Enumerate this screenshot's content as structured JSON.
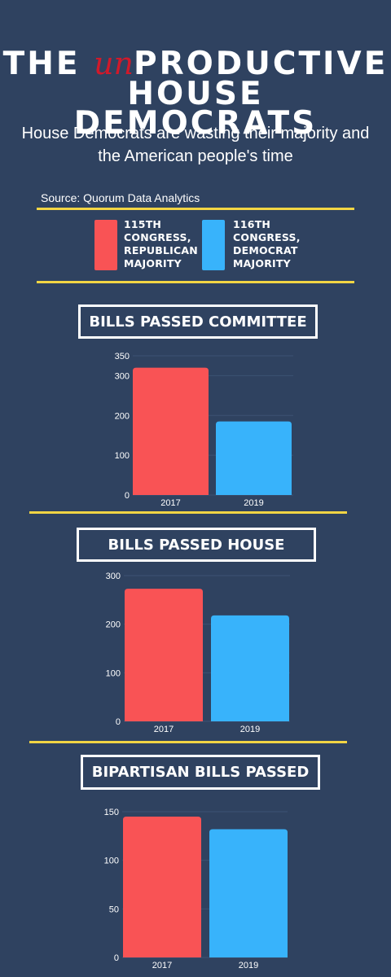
{
  "header": {
    "title_pre": "THE ",
    "title_un": "un",
    "title_post": "PRODUCTIVE",
    "title_line2": "HOUSE DEMOCRATS",
    "subtitle": "House Democrats are wasting their majority and the American people's time",
    "source": "Source: Quorum Data Analytics"
  },
  "legend": {
    "items": [
      {
        "lines": [
          "115th",
          "Congress,",
          "Republican",
          "Majority"
        ],
        "color": "#f95355"
      },
      {
        "lines": [
          "116th",
          "Congress,",
          "Democrat",
          "Majority"
        ],
        "color": "#38b3fb"
      }
    ]
  },
  "colors": {
    "background": "#2f4260",
    "rule": "#f2d544",
    "republican": "#f95355",
    "democrat": "#38b3fb",
    "title_accent": "#d0192a"
  },
  "chart_data": [
    {
      "type": "bar",
      "title": "BILLS PASSED COMMITTEE",
      "categories": [
        "2017",
        "2019"
      ],
      "values": [
        320,
        185
      ],
      "yticks": [
        0,
        100,
        200,
        300,
        350
      ],
      "ylim": [
        0,
        350
      ],
      "colors": [
        "#f95355",
        "#38b3fb"
      ],
      "grid": true
    },
    {
      "type": "bar",
      "title": "BILLS PASSED HOUSE",
      "categories": [
        "2017",
        "2019"
      ],
      "values": [
        273,
        218
      ],
      "yticks": [
        0,
        100,
        200,
        300
      ],
      "ylim": [
        0,
        300
      ],
      "colors": [
        "#f95355",
        "#38b3fb"
      ],
      "grid": true
    },
    {
      "type": "bar",
      "title": "BIPARTISAN BILLS PASSED",
      "categories": [
        "2017",
        "2019"
      ],
      "values": [
        145,
        132
      ],
      "yticks": [
        0,
        50,
        100,
        150
      ],
      "ylim": [
        0,
        150
      ],
      "colors": [
        "#f95355",
        "#38b3fb"
      ],
      "grid": true
    }
  ]
}
